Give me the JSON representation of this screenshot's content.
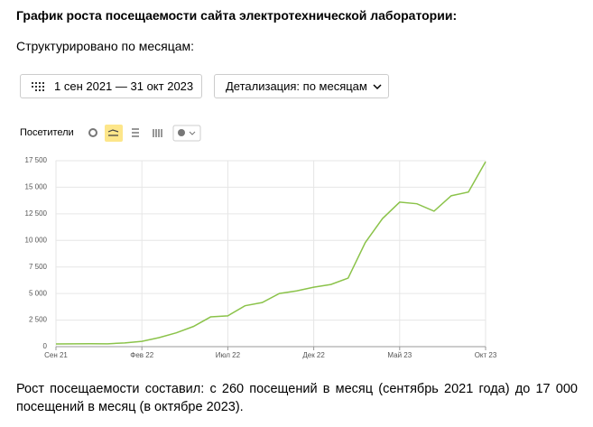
{
  "heading": "График роста посещаемости сайта электротехнической лаборатории:",
  "subheading": "Структурировано по месяцам:",
  "controls": {
    "date_range": "1 сен 2021 — 31 окт 2023",
    "detail": "Детализация: по месяцам"
  },
  "chart_data": {
    "type": "line",
    "categories": [
      "Сен 21",
      null,
      null,
      null,
      null,
      "Фев 22",
      null,
      null,
      null,
      null,
      "Июл 22",
      null,
      null,
      null,
      null,
      "Дек 22",
      null,
      null,
      null,
      null,
      "Май 23",
      null,
      null,
      null,
      null,
      "Окт 23"
    ],
    "series": [
      {
        "name": "Посетители",
        "color": "#8bc34a",
        "values": [
          260,
          270,
          280,
          270,
          350,
          500,
          850,
          1300,
          1900,
          2800,
          2900,
          3850,
          4150,
          5000,
          5250,
          5600,
          5850,
          6450,
          9800,
          12050,
          13600,
          13450,
          12750,
          14200,
          14550,
          17400
        ]
      }
    ],
    "ylim": [
      0,
      17500
    ],
    "yticks": [
      0,
      {
        "value": 2500,
        "label": "2 500"
      },
      {
        "value": 5000,
        "label": "5 000"
      },
      {
        "value": 7500,
        "label": "7 500"
      },
      {
        "value": 10000,
        "label": "10 000"
      },
      {
        "value": 12500,
        "label": "12 500"
      },
      {
        "value": 15000,
        "label": "15 000"
      },
      {
        "value": 17500,
        "label": "17 500"
      }
    ],
    "grid": true
  },
  "footer_text": "Рост посещаемости составил: с 260 посещений в месяц (сентябрь 2021 года) до 17 000 посещений в месяц (в октябре 2023)."
}
